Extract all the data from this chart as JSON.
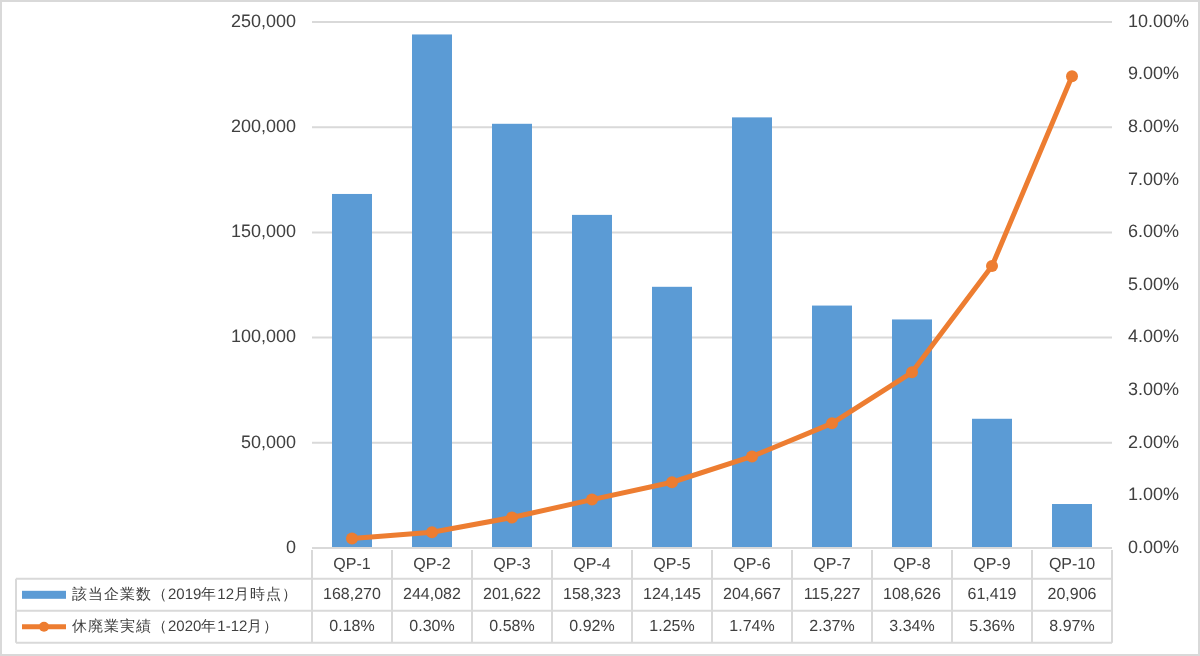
{
  "chart_data": {
    "type": "bar",
    "categories": [
      "QP-1",
      "QP-2",
      "QP-3",
      "QP-4",
      "QP-5",
      "QP-6",
      "QP-7",
      "QP-8",
      "QP-9",
      "QP-10"
    ],
    "series": [
      {
        "name": "該当企業数（2019年12月時点）",
        "color": "#5b9bd5",
        "values": [
          168270,
          244082,
          201622,
          158323,
          124145,
          204667,
          115227,
          108626,
          61419,
          20906
        ],
        "value_labels": [
          "168,270",
          "244,082",
          "201,622",
          "158,323",
          "124,145",
          "204,667",
          "115,227",
          "108,626",
          "61,419",
          "20,906"
        ]
      },
      {
        "name": "休廃業実績（2020年1-12月）",
        "type": "line",
        "axis": "y2",
        "color": "#ed7d31",
        "marker": "circle",
        "values": [
          0.18,
          0.3,
          0.58,
          0.92,
          1.25,
          1.74,
          2.37,
          3.34,
          5.36,
          8.97
        ],
        "value_labels": [
          "0.18%",
          "0.30%",
          "0.58%",
          "0.92%",
          "1.25%",
          "1.74%",
          "2.37%",
          "3.34%",
          "5.36%",
          "8.97%"
        ]
      }
    ],
    "ylim": [
      0,
      250000
    ],
    "yticks": [
      {
        "value": 0,
        "label": "0"
      },
      {
        "value": 50000,
        "label": "50,000"
      },
      {
        "value": 100000,
        "label": "100,000"
      },
      {
        "value": 150000,
        "label": "150,000"
      },
      {
        "value": 200000,
        "label": "200,000"
      },
      {
        "value": 250000,
        "label": "250,000"
      }
    ],
    "y2lim": [
      0,
      10
    ],
    "y2ticks": [
      {
        "value": 0,
        "label": "0.00%"
      },
      {
        "value": 1,
        "label": "1.00%"
      },
      {
        "value": 2,
        "label": "2.00%"
      },
      {
        "value": 3,
        "label": "3.00%"
      },
      {
        "value": 4,
        "label": "4.00%"
      },
      {
        "value": 5,
        "label": "5.00%"
      },
      {
        "value": 6,
        "label": "6.00%"
      },
      {
        "value": 7,
        "label": "7.00%"
      },
      {
        "value": 8,
        "label": "8.00%"
      },
      {
        "value": 9,
        "label": "9.00%"
      },
      {
        "value": 10,
        "label": "10.00%"
      }
    ],
    "grid": "y",
    "legend": "bottom"
  }
}
